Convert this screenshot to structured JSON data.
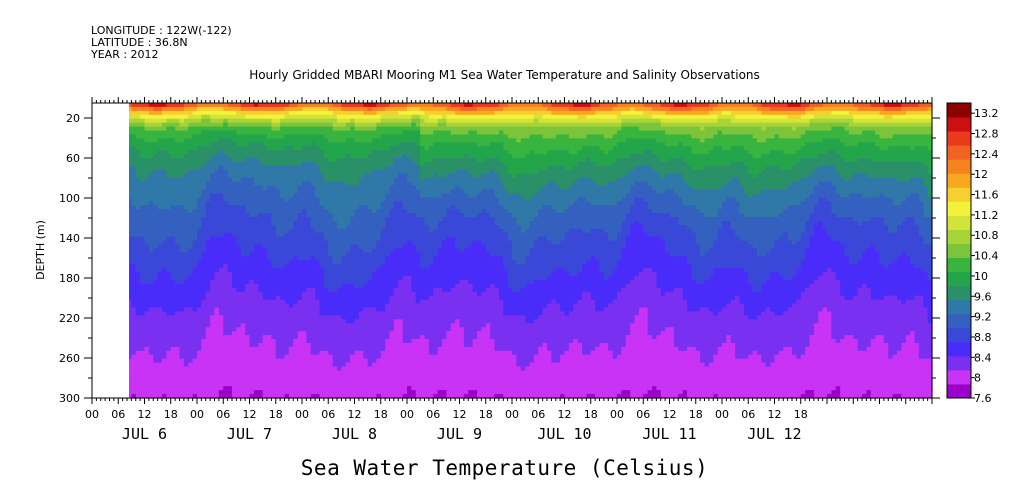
{
  "header": {
    "longitude": "LONGITUDE : 122W(-122)",
    "latitude": "LATITUDE : 36.8N",
    "year": "YEAR : 2012"
  },
  "title": "Hourly Gridded MBARI Mooring M1 Sea Water Temperature and Salinity Observations",
  "bottom_title": "Sea Water Temperature (Celsius)",
  "chart_data": {
    "type": "heatmap",
    "title": "Hourly Gridded MBARI Mooring M1 Sea Water Temperature and Salinity Observations",
    "xlabel": "",
    "ylabel": "DEPTH (m)",
    "y_ticks": [
      20,
      60,
      100,
      140,
      180,
      220,
      260,
      300
    ],
    "ylim": [
      300,
      5
    ],
    "x_hour_ticks": [
      "00",
      "06",
      "12",
      "18",
      "00",
      "06",
      "12",
      "18",
      "00",
      "06",
      "12",
      "18",
      "00",
      "06",
      "12",
      "18",
      "00",
      "06",
      "12",
      "18",
      "00",
      "06",
      "12",
      "18",
      "00",
      "06",
      "12",
      "18"
    ],
    "x_day_labels": [
      "JUL  6",
      "JUL  7",
      "JUL  8",
      "JUL  9",
      "JUL 10",
      "JUL 11",
      "JUL 12"
    ],
    "colorbar": {
      "label": "Sea Water Temperature (Celsius)",
      "tick_labels": [
        "13.2",
        "12.8",
        "12.4",
        "12",
        "11.6",
        "11.2",
        "10.8",
        "10.4",
        "10",
        "9.6",
        "9.2",
        "8.8",
        "8.4",
        "8",
        "7.6"
      ],
      "range": [
        7.6,
        13.4
      ]
    },
    "depth_profile": [
      {
        "depth": 5,
        "temp": 12.8
      },
      {
        "depth": 12,
        "temp": 11.8
      },
      {
        "depth": 20,
        "temp": 11.0
      },
      {
        "depth": 30,
        "temp": 10.3
      },
      {
        "depth": 45,
        "temp": 9.9
      },
      {
        "depth": 70,
        "temp": 9.5
      },
      {
        "depth": 100,
        "temp": 9.2
      },
      {
        "depth": 140,
        "temp": 8.9
      },
      {
        "depth": 180,
        "temp": 8.6
      },
      {
        "depth": 220,
        "temp": 8.3
      },
      {
        "depth": 260,
        "temp": 8.1
      },
      {
        "depth": 300,
        "temp": 7.9
      }
    ],
    "time_range_hours": [
      0,
      192
    ],
    "data_start_hour": 6
  }
}
